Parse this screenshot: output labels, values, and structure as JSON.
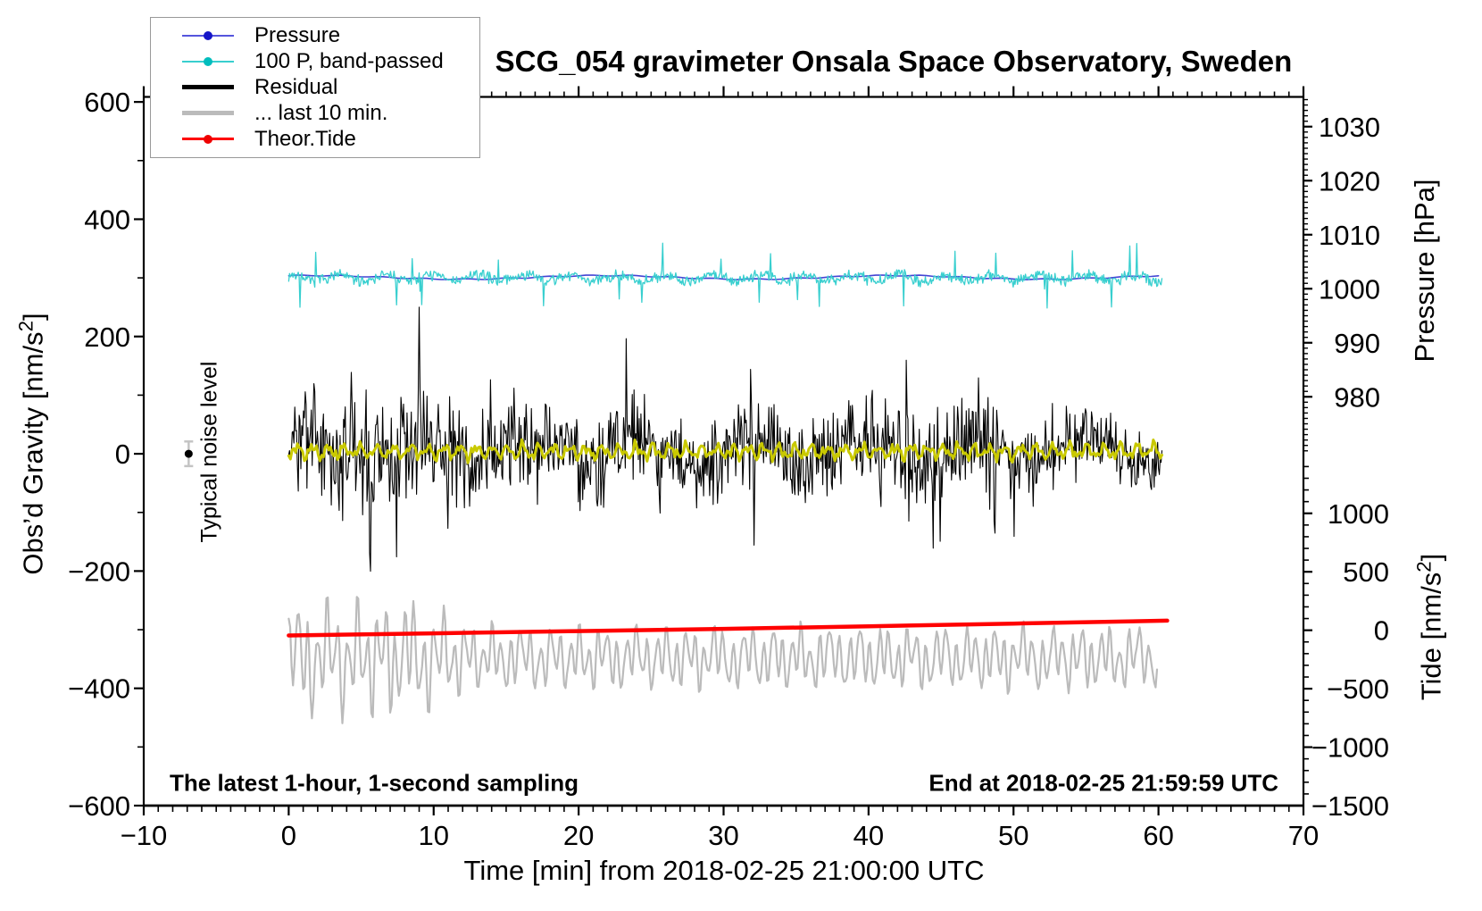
{
  "title": "SCG_054 gravimeter Onsala Space Observatory, Sweden",
  "annotations": {
    "noise_label": "Typical noise level",
    "footer_left": "The latest 1-hour, 1-second sampling",
    "footer_right": "End at 2018-02-25 21:59:59 UTC"
  },
  "legend": {
    "items": [
      {
        "label": "Pressure",
        "color": "#5555dd",
        "dot": "#1515c8",
        "thickness": 2
      },
      {
        "label": "100 P, band-passed",
        "color": "#38cfcf",
        "dot": "#00bdbd",
        "thickness": 2
      },
      {
        "label": "Residual",
        "color": "#000000",
        "dot": null,
        "thickness": 5
      },
      {
        "label": "... last 10 min.",
        "color": "#bbbbbb",
        "dot": null,
        "thickness": 5
      },
      {
        "label": "Theor.Tide",
        "color": "#ff0000",
        "dot": "#ee0000",
        "thickness": 3
      }
    ]
  },
  "chart_data": {
    "type": "line",
    "title": "SCG_054 gravimeter Onsala Space Observatory, Sweden",
    "axes": {
      "x": {
        "title": "Time [min] from 2018-02-25 21:00:00 UTC",
        "range": [
          -10,
          70
        ],
        "major_ticks": [
          -10,
          0,
          10,
          20,
          30,
          40,
          50,
          60,
          70
        ],
        "minor_step": 1,
        "unit": "min"
      },
      "gravity": {
        "title": "Obs'd Gravity [nm/s2]",
        "side": "left",
        "range": [
          -600,
          608.6
        ],
        "major_ticks": [
          -600,
          -400,
          -200,
          0,
          200,
          400,
          600
        ],
        "minor_step": 100,
        "unit": "nm/s2"
      },
      "pressure": {
        "title": "Pressure [hPa]",
        "side": "right-top",
        "range": [
          969.3,
          1035.5
        ],
        "major_ticks": [
          980,
          990,
          1000,
          1010,
          1020,
          1030
        ],
        "minor_step": 1,
        "unit": "hPa"
      },
      "tide": {
        "title": "Tide [nm/s2]",
        "side": "right-bottom",
        "range": [
          -1500,
          1500
        ],
        "major_ticks": [
          -1500,
          -1000,
          -500,
          0,
          500,
          1000
        ],
        "minor_step": 100,
        "unit": "nm/s2"
      }
    },
    "series": [
      {
        "id": "pressure",
        "name": "Pressure",
        "axis": "pressure",
        "color": "#4444d4",
        "width": 1.6,
        "x_start": 0,
        "x_end": 60.3,
        "base_hPa": 1002.1,
        "drift_hPa": 0.35,
        "seed": 11,
        "note": "nearly flat ~1002 hPa, mostly hidden behind the band-passed curve"
      },
      {
        "id": "band_passed",
        "name": "100 P, band-passed",
        "axis": "gravity",
        "color": "#38cfcf",
        "width": 1.3,
        "x_start": 0,
        "x_end": 60.3,
        "center": 300,
        "white_amp": 8,
        "lf_amp": 5,
        "spike_rate": 0.022,
        "spike_min": 22,
        "spike_max": 58,
        "seed": 7
      },
      {
        "id": "residual",
        "name": "Residual",
        "axis": "gravity",
        "color": "#000000",
        "width": 1.1,
        "x_start": 0,
        "x_end": 60.3,
        "center": 5,
        "lf_amp": 20,
        "envelope": [
          [
            0,
            60
          ],
          [
            3,
            85
          ],
          [
            5,
            95
          ],
          [
            8,
            88
          ],
          [
            11,
            92
          ],
          [
            14,
            72
          ],
          [
            18,
            68
          ],
          [
            22,
            75
          ],
          [
            26,
            72
          ],
          [
            30,
            65
          ],
          [
            34,
            68
          ],
          [
            38,
            62
          ],
          [
            42,
            70
          ],
          [
            46,
            78
          ],
          [
            49,
            68
          ],
          [
            52,
            55
          ],
          [
            56,
            52
          ],
          [
            60.3,
            48
          ]
        ],
        "spikes": [
          [
            4.35,
            170
          ],
          [
            5.6,
            -215
          ],
          [
            9.0,
            230
          ],
          [
            11.0,
            -200
          ],
          [
            13.9,
            150
          ],
          [
            16.3,
            178
          ],
          [
            23.3,
            155
          ],
          [
            25.6,
            -165
          ],
          [
            32.1,
            -150
          ],
          [
            42.6,
            165
          ],
          [
            47.6,
            155
          ],
          [
            48.7,
            -190
          ]
        ],
        "seed": 3
      },
      {
        "id": "residual_smooth",
        "name": "smoothed residual (unlabeled yellow)",
        "axis": "gravity",
        "color": "#c9c900",
        "width": 3,
        "x_start": 0,
        "x_end": 60.3,
        "center": 4,
        "sine_amps": [
          9,
          5,
          4
        ],
        "sine_freqs": [
          0.9,
          1.7,
          3.1
        ],
        "jitter": 4,
        "seed": 5
      },
      {
        "id": "last10",
        "name": "... last 10 min.",
        "axis": "tide",
        "color": "#bbbbbb",
        "width": 2.2,
        "x_start": 0,
        "x_end": 60,
        "mean": -235,
        "components": [
          [
            180,
            1.5
          ],
          [
            95,
            0.52
          ],
          [
            55,
            2.35
          ]
        ],
        "early_boost": 1.75,
        "early_until": 9,
        "jitter": 14,
        "seed": 9
      },
      {
        "id": "theor_tide",
        "name": "Theor.Tide",
        "axis": "tide",
        "color": "#ff0000",
        "width": 4.5,
        "points": [
          [
            0,
            -45
          ],
          [
            10,
            -26
          ],
          [
            20,
            -7
          ],
          [
            30,
            12
          ],
          [
            40,
            34
          ],
          [
            50,
            57
          ],
          [
            60.6,
            82
          ]
        ]
      }
    ],
    "noise_marker": {
      "label": "Typical noise level",
      "x": -6.9,
      "value": 0,
      "error": 21,
      "dot_color": "#000000",
      "bar_color": "#c4c4c4"
    }
  }
}
